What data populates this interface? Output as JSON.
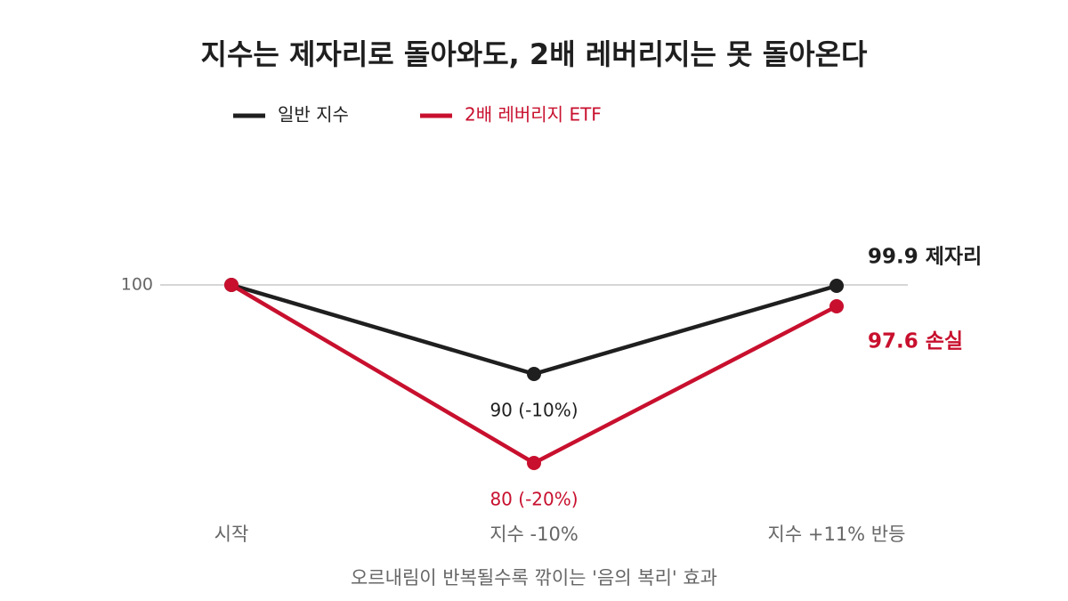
{
  "chart_data": {
    "type": "line",
    "title": "지수는 제자리로 돌아와도, 2배 레버리지는 못 돌아온다",
    "x_label": "오르내림이 반복될수록 깎이는 '음의 복리' 효과",
    "categories": [
      "시작",
      "지수 -10%",
      "지수 +11% 반등"
    ],
    "series": [
      {
        "name": "일반 지수",
        "color": "#1f1f1f",
        "values": [
          100,
          90,
          99.9
        ],
        "value_labels": [
          null,
          "90 (-10%)",
          "99.9 제자리"
        ]
      },
      {
        "name": "2배 레버리지 ETF",
        "color": "#c8102e",
        "values": [
          100,
          80,
          97.6
        ],
        "value_labels": [
          null,
          "80 (-20%)",
          "97.6 손실"
        ]
      }
    ],
    "ylim": [
      76,
      110
    ],
    "yticks": [
      100
    ],
    "grid": true
  }
}
